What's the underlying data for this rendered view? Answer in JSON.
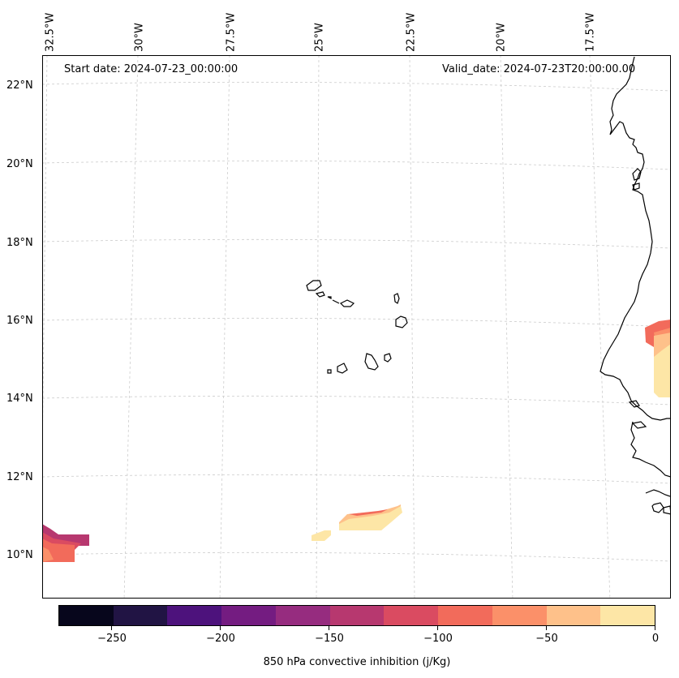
{
  "header": {
    "start_date": "Start date: 2024-07-23_00:00:00",
    "valid_date": "Valid_date: 2024-07-23T20:00:00.00"
  },
  "axes": {
    "lon_labels": [
      "32.5°W",
      "30°W",
      "27.5°W",
      "25°W",
      "22.5°W",
      "20°W",
      "17.5°W"
    ],
    "lat_labels": [
      "22°N",
      "20°N",
      "18°N",
      "16°N",
      "14°N",
      "12°N",
      "10°N"
    ]
  },
  "colorbar": {
    "title": "850 hPa convective inhibition (j/Kg)",
    "tick_labels": [
      "−250",
      "−200",
      "−150",
      "−100",
      "−50",
      "0"
    ],
    "colors": [
      "#07061c",
      "#211444",
      "#4d127c",
      "#741c81",
      "#962c7f",
      "#b7386f",
      "#da4b61",
      "#f26b5b",
      "#fb9069",
      "#fec18a",
      "#fde6a6"
    ]
  },
  "legend_fill": {
    "light": "#fde6a6",
    "peach": "#fec18a",
    "salmon": "#fb9069",
    "coral": "#f26b5b",
    "red": "#da4b61",
    "magenta": "#b7386f"
  }
}
